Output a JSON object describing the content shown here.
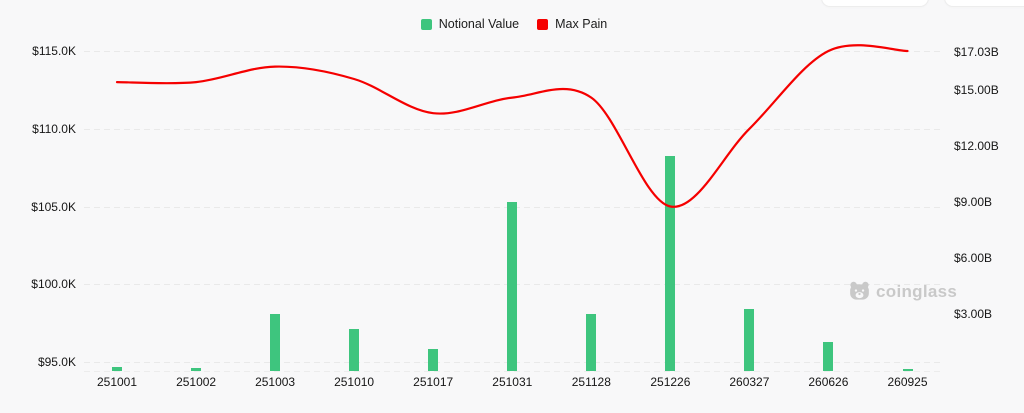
{
  "legend": {
    "items": [
      {
        "id": "notional-value",
        "label": "Notional Value",
        "color": "#3ec57e"
      },
      {
        "id": "max-pain",
        "label": "Max Pain",
        "color": "#f50000"
      }
    ]
  },
  "watermark": {
    "label": "coinglass",
    "icon": "bear-logo-icon",
    "color": "#c9c9c9"
  },
  "colors": {
    "background": "#f8f8f9",
    "bar_green": "#3ec57e",
    "line_red": "#f50000",
    "gridline": "#e9e9e9",
    "axis_text": "#161616",
    "watermark": "#c9c9c9"
  },
  "chart_data": {
    "type": "bar",
    "subtype": "combo-bar-line",
    "categories": [
      "251001",
      "251002",
      "251003",
      "251010",
      "251017",
      "251031",
      "251128",
      "251226",
      "260327",
      "260626",
      "260925"
    ],
    "series": [
      {
        "name": "Notional Value",
        "type": "bar",
        "yaxis": "right",
        "unit": "B (USD)",
        "color": "#3ec57e",
        "values": [
          0.15,
          0.07,
          3.0,
          2.2,
          1.1,
          9.0,
          3.0,
          11.45,
          3.25,
          1.5,
          0.05
        ]
      },
      {
        "name": "Max Pain",
        "type": "line",
        "yaxis": "left",
        "unit": "K (USD)",
        "color": "#f50000",
        "values": [
          113.0,
          113.0,
          114.0,
          113.2,
          111.0,
          112.0,
          112.0,
          105.0,
          110.0,
          115.0,
          115.0
        ]
      }
    ],
    "left_axis": {
      "tick_values": [
        115,
        110,
        105,
        100,
        95
      ],
      "tick_labels": [
        "$115.0K",
        "$110.0K",
        "$105.0K",
        "$100.0K",
        "$95.0K"
      ],
      "range": [
        95,
        115
      ]
    },
    "right_axis": {
      "tick_values": [
        17.03,
        15,
        12,
        9,
        6,
        3
      ],
      "tick_labels": [
        "$17.03B",
        "$15.00B",
        "$12.00B",
        "$9.00B",
        "$6.00B",
        "$3.00B"
      ],
      "range": [
        0,
        17.03
      ]
    },
    "grid": "horizontal-dashed",
    "legend_position": "top-center"
  }
}
